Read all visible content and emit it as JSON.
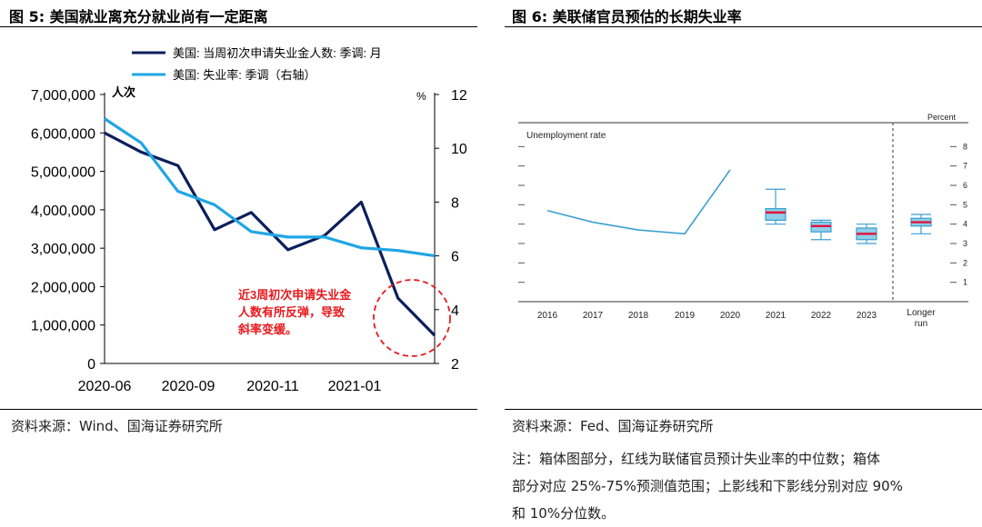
{
  "left": {
    "title": "图 5:  美国就业离充分就业尚有一定距离",
    "source": "资料来源：Wind、国海证券研究所",
    "chart_data": {
      "type": "line",
      "x_labels": [
        "2020-06",
        "2020-09",
        "2020-11",
        "2021-01"
      ],
      "left_axis": {
        "unit_label": "人次",
        "ticks": [
          "0",
          "1,000,000",
          "2,000,000",
          "3,000,000",
          "4,000,000",
          "5,000,000",
          "6,000,000",
          "7,000,000"
        ],
        "ylim": [
          0,
          7000000
        ]
      },
      "right_axis": {
        "unit_label": "%",
        "ticks": [
          "2",
          "4",
          "6",
          "8",
          "10",
          "12"
        ],
        "ylim": [
          2,
          12
        ]
      },
      "series": [
        {
          "name": "美国: 当周初次申请失业金人数: 季调: 月",
          "axis": "left",
          "color": "#0b1f5c",
          "values": [
            6000000,
            5500000,
            5150000,
            3480000,
            3930000,
            2960000,
            3330000,
            4200000,
            1700000,
            730000
          ]
        },
        {
          "name": "美国: 失业率: 季调（右轴）",
          "axis": "right",
          "color": "#1fa6e6",
          "values": [
            11.1,
            10.2,
            8.4,
            7.9,
            6.9,
            6.7,
            6.7,
            6.3,
            6.2,
            6.0
          ]
        }
      ],
      "annotation": "近3周初次申请失业金人数有所反弹，导致斜率变缓。",
      "annotation_lines": [
        "近3周初次申请失业金",
        "人数有所反弹，导致",
        "斜率变缓。"
      ],
      "annotation_color": "#e8191c"
    }
  },
  "right": {
    "title": "图 6:  美联储官员预估的长期失业率",
    "source": "资料来源：Fed、国海证券研究所",
    "notes": [
      "注：箱体图部分，红线为联储官员预计失业率的中位数；箱体",
      "部分对应 25%-75%预测值范围；上影线和下影线分别对应 90%",
      "和 10%分位数。"
    ],
    "chart_data": {
      "type": "line+box",
      "panel_label": "Unemployment rate",
      "unit_label": "Percent",
      "y_ticks": [
        1,
        2,
        3,
        4,
        5,
        6,
        7,
        8
      ],
      "ylim": [
        0,
        9
      ],
      "x_labels": [
        "2016",
        "2017",
        "2018",
        "2019",
        "2020",
        "2021",
        "2022",
        "2023",
        "Longer run"
      ],
      "history": {
        "x": [
          "2016",
          "2017",
          "2018",
          "2019",
          "2020"
        ],
        "values": [
          4.7,
          4.1,
          3.7,
          3.5,
          6.8
        ]
      },
      "boxes": [
        {
          "x": "2021",
          "p10": 4.0,
          "p25": 4.2,
          "median": 4.6,
          "p75": 4.8,
          "p90": 5.8
        },
        {
          "x": "2022",
          "p10": 3.2,
          "p25": 3.6,
          "median": 3.9,
          "p75": 4.1,
          "p90": 4.2
        },
        {
          "x": "2023",
          "p10": 3.0,
          "p25": 3.2,
          "median": 3.5,
          "p75": 3.8,
          "p90": 4.0
        },
        {
          "x": "Longer run",
          "p10": 3.5,
          "p25": 3.9,
          "median": 4.1,
          "p75": 4.3,
          "p90": 4.5
        }
      ],
      "median_color": "#e0143c",
      "box_color": "#8fcde8"
    }
  }
}
